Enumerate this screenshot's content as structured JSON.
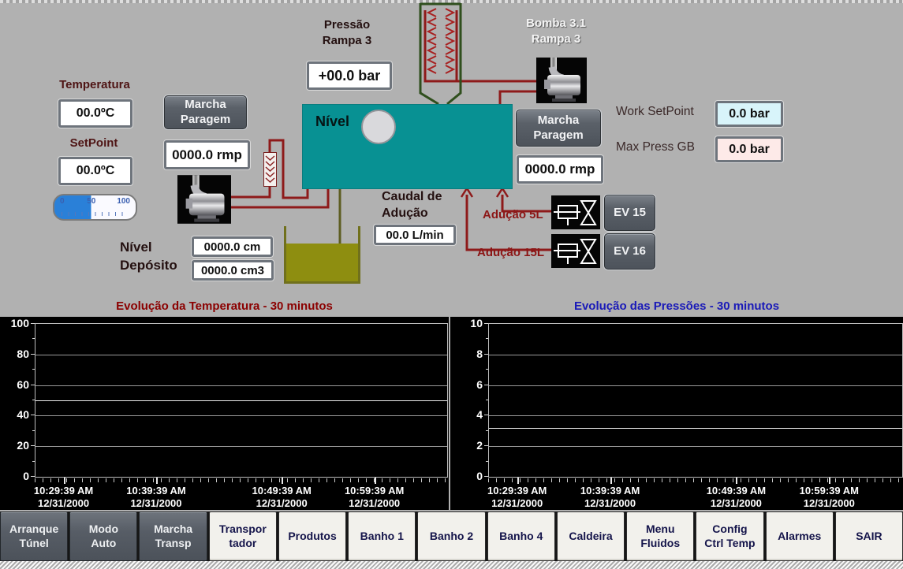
{
  "process": {
    "temperature": {
      "label": "Temperatura",
      "value": "00.0ºC"
    },
    "setpoint": {
      "label": "SetPoint",
      "value": "00.0ºC"
    },
    "gauge_scale": {
      "start": "0",
      "mid": "50",
      "end": "100"
    },
    "pump_left": {
      "marcha_button": "Marcha\nParagem",
      "rpm_value": "0000.0 rmp"
    },
    "pressure_ramp": {
      "label": "Pressão\nRampa 3",
      "value": "+00.0 bar"
    },
    "tank": {
      "label": "Nível"
    },
    "bomba": {
      "title": "Bomba 3.1\nRampa 3",
      "marcha_button": "Marcha\nParagem",
      "rpm_value": "0000.0 rmp"
    },
    "work_setpoint": {
      "label": "Work SetPoint",
      "value": "0.0 bar",
      "bg": "#d8f4fa"
    },
    "max_press": {
      "label": "Max Press GB",
      "value": "0.0 bar",
      "bg": "#fdeae8"
    },
    "caudal": {
      "label": "Caudal de\nAdução",
      "value": "00.0 L/min"
    },
    "aducao5": {
      "label": "Adução 5L",
      "button": "EV 15"
    },
    "aducao15": {
      "label": "Adução 15L",
      "button": "EV 16"
    },
    "nivel_deposito": {
      "label": "Nível\nDepósito",
      "value_cm": "0000.0 cm",
      "value_cm3": "0000.0 cm3"
    }
  },
  "colors": {
    "background": "#b1b1b1",
    "tank_teal": "#089193",
    "pipe_red": "#8e1a1a",
    "funnel_green": "#2f4f1d",
    "olive_liquid": "#8e8e10",
    "chart_bg": "#000000",
    "title_left": "#8b0000",
    "title_right": "#1a1ab8"
  },
  "chart_data": [
    {
      "type": "line",
      "title": "Evolução da Temperatura - 30 minutos",
      "title_color": "#8b0000",
      "ylim": [
        0,
        100
      ],
      "yticks": [
        0,
        20,
        40,
        60,
        80,
        100
      ],
      "reference_line_y": 50,
      "grid": true,
      "plot_bg": "#000000",
      "x_ticklabels": [
        {
          "time": "10:29:39 AM",
          "date": "12/31/2000"
        },
        {
          "time": "10:39:39 AM",
          "date": "12/31/2000"
        },
        {
          "time": "10:49:39 AM",
          "date": "12/31/2000"
        },
        {
          "time": "10:59:39 AM",
          "date": "12/31/2000"
        }
      ],
      "series": []
    },
    {
      "type": "line",
      "title": "Evolução das Pressões - 30 minutos",
      "title_color": "#1a1ab8",
      "ylim": [
        0,
        10
      ],
      "yticks": [
        0,
        2,
        4,
        6,
        8,
        10
      ],
      "reference_line_y": 3.2,
      "grid": true,
      "plot_bg": "#000000",
      "x_ticklabels": [
        {
          "time": "10:29:39 AM",
          "date": "12/31/2000"
        },
        {
          "time": "10:39:39 AM",
          "date": "12/31/2000"
        },
        {
          "time": "10:49:39 AM",
          "date": "12/31/2000"
        },
        {
          "time": "10:59:39 AM",
          "date": "12/31/2000"
        }
      ],
      "series": []
    }
  ],
  "nav": {
    "buttons": [
      {
        "label": "Arranque\nTúnel",
        "style": "dark"
      },
      {
        "label": "Modo\nAuto",
        "style": "dark"
      },
      {
        "label": "Marcha\nTransp",
        "style": "dark"
      },
      {
        "label": "Transpor\ntador",
        "style": "light"
      },
      {
        "label": "Produtos",
        "style": "light"
      },
      {
        "label": "Banho 1",
        "style": "light"
      },
      {
        "label": "Banho 2",
        "style": "light"
      },
      {
        "label": "Banho 4",
        "style": "light"
      },
      {
        "label": "Caldeira",
        "style": "light"
      },
      {
        "label": "Menu\nFluidos",
        "style": "light"
      },
      {
        "label": "Config\nCtrl Temp",
        "style": "light"
      },
      {
        "label": "Alarmes",
        "style": "light"
      },
      {
        "label": "SAIR",
        "style": "light"
      }
    ]
  }
}
